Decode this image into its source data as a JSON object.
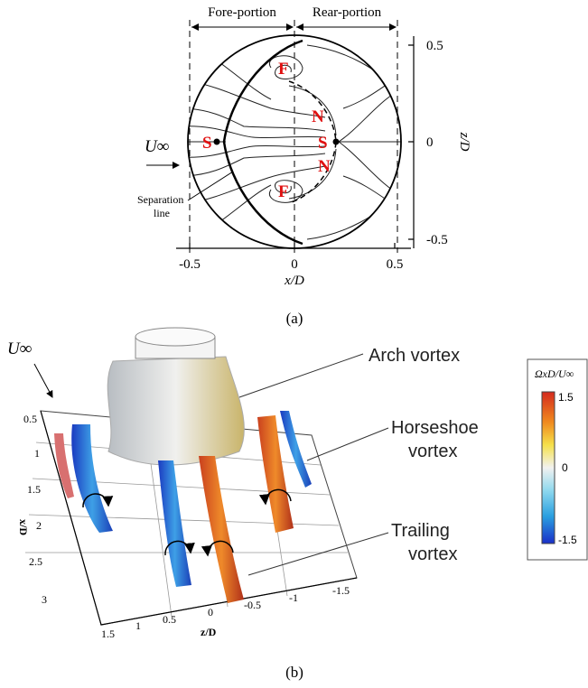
{
  "panel_a": {
    "fore": "Fore-portion",
    "rear": "Rear-portion",
    "flow": "U∞",
    "points": [
      "S",
      "F",
      "N",
      "S",
      "N",
      "F"
    ],
    "separation": [
      "Separation",
      "line"
    ],
    "x_ticks": [
      "-0.5",
      "0",
      "0.5"
    ],
    "z_ticks": [
      "0.5",
      "0",
      "-0.5"
    ],
    "x_label": "x/D",
    "z_label": "z/D",
    "caption": "(a)"
  },
  "panel_b": {
    "flow": "U∞",
    "labels": [
      [
        "Arch vortex"
      ],
      [
        "Horseshoe",
        "vortex"
      ],
      [
        "Trailing",
        "vortex"
      ]
    ],
    "colorbar": {
      "title": "ΩxD/U∞",
      "ticks": [
        "1.5",
        "0",
        "-1.5"
      ]
    },
    "x_ticks": [
      "0.5",
      "1",
      "1.5",
      "2",
      "2.5",
      "3"
    ],
    "z_ticks": [
      "1.5",
      "1",
      "0.5",
      "0",
      "-0.5",
      "-1",
      "-1.5"
    ],
    "x_label": "x/D",
    "z_label": "z/D",
    "caption": "(b)"
  }
}
